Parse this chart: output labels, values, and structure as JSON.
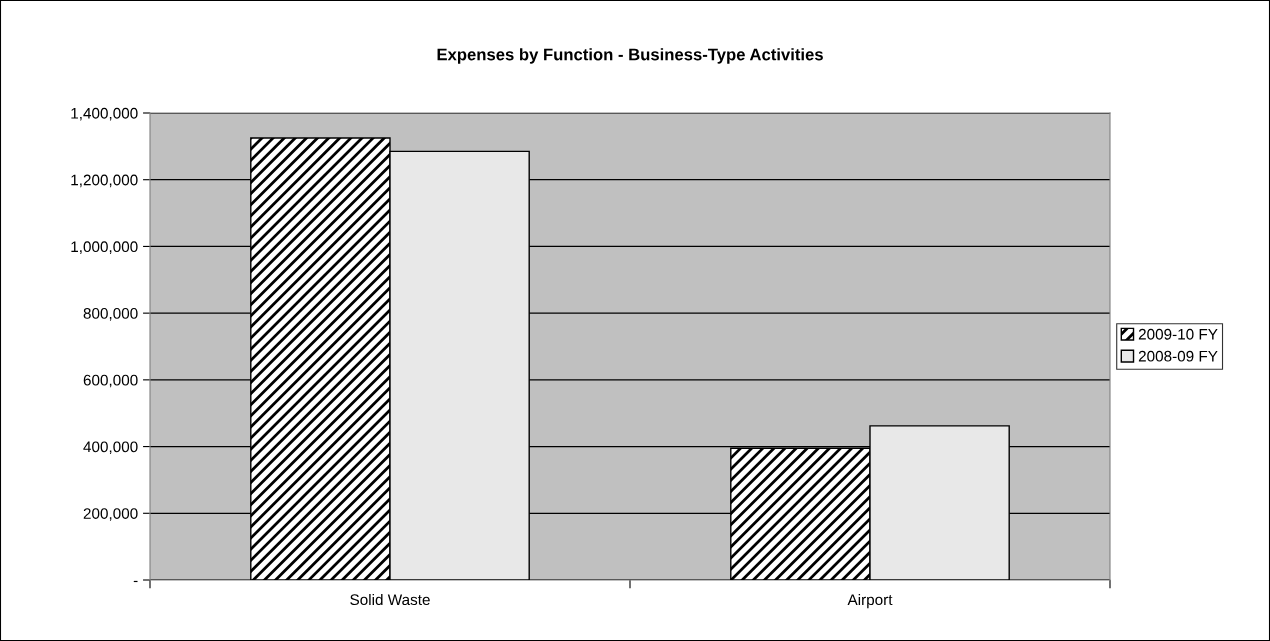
{
  "chart_data": {
    "type": "bar",
    "title": "Expenses by Function - Business-Type Activities",
    "categories": [
      "Solid Waste",
      "Airport"
    ],
    "series": [
      {
        "name": "2009-10 FY",
        "color": "#000000",
        "values": [
          1325000,
          395000
        ]
      },
      {
        "name": "2008-09 FY",
        "color": "#e8e8e8",
        "values": [
          1285000,
          462000
        ]
      }
    ],
    "ylim": [
      0,
      1400000
    ],
    "yticks": [
      {
        "value": 0,
        "label": "-"
      },
      {
        "value": 200000,
        "label": "200,000"
      },
      {
        "value": 400000,
        "label": "400,000"
      },
      {
        "value": 600000,
        "label": "600,000"
      },
      {
        "value": 800000,
        "label": "800,000"
      },
      {
        "value": 1000000,
        "label": "1,000,000"
      },
      {
        "value": 1200000,
        "label": "1,200,000"
      },
      {
        "value": 1400000,
        "label": "1,400,000"
      }
    ],
    "grid": "y",
    "legend": "right"
  }
}
